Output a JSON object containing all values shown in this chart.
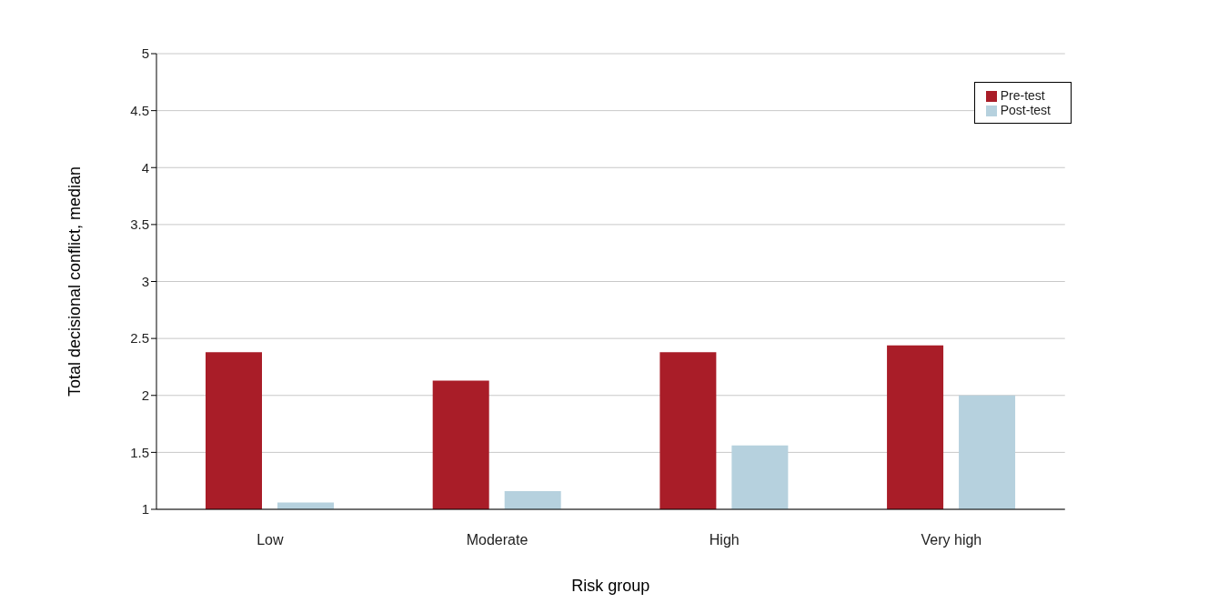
{
  "chart_data": {
    "type": "bar",
    "xlabel": "Risk group",
    "ylabel": "Total decisional conflict, median",
    "categories": [
      "Low",
      "Moderate",
      "High",
      "Very high"
    ],
    "series": [
      {
        "name": "Pre-test",
        "color": "#a91d28",
        "values": [
          2.38,
          2.13,
          2.38,
          2.44
        ]
      },
      {
        "name": "Post-test",
        "color": "#b6d1de",
        "values": [
          1.06,
          1.16,
          1.56,
          2.0
        ]
      }
    ],
    "ylim": [
      1,
      5
    ],
    "yticks": [
      1,
      1.5,
      2,
      2.5,
      3,
      3.5,
      4,
      4.5,
      5
    ],
    "grid": "y",
    "legend": "top right"
  }
}
